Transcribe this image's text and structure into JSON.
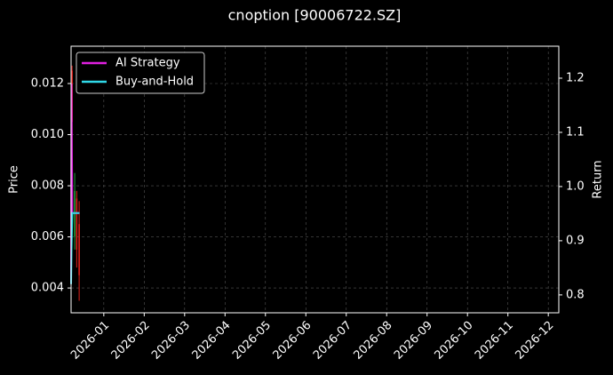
{
  "chart_data": {
    "type": "candlestick",
    "title": "cnoption [90006722.SZ]",
    "y_label": "Price",
    "y2_label": "Return",
    "xlim": [
      0.19,
      12.26
    ],
    "xticks": [
      {
        "value": 1,
        "label": "2026-01"
      },
      {
        "value": 2,
        "label": "2026-02"
      },
      {
        "value": 3,
        "label": "2026-03"
      },
      {
        "value": 4,
        "label": "2026-04"
      },
      {
        "value": 5,
        "label": "2026-05"
      },
      {
        "value": 6,
        "label": "2026-06"
      },
      {
        "value": 7,
        "label": "2026-07"
      },
      {
        "value": 8,
        "label": "2026-08"
      },
      {
        "value": 9,
        "label": "2026-09"
      },
      {
        "value": 10,
        "label": "2026-10"
      },
      {
        "value": 11,
        "label": "2026-11"
      },
      {
        "value": 12,
        "label": "2026-12"
      }
    ],
    "ylim": [
      0.00303,
      0.01346
    ],
    "yticks": [
      0.004,
      0.006,
      0.008,
      0.01,
      0.012
    ],
    "y2lim": [
      0.767,
      1.259
    ],
    "y2ticks": [
      0.8,
      0.9,
      1.0,
      1.1,
      1.2
    ],
    "y2tick_labels": [
      "0.8",
      "0.9",
      "1.0",
      "1.1",
      "1.2"
    ],
    "yticks_labels": [
      "0.004",
      "0.006",
      "0.008",
      "0.010",
      "0.012"
    ],
    "grid": true,
    "legend": "upper left",
    "candles": {
      "x": [
        0.215,
        0.28,
        0.33,
        0.39
      ],
      "open": [
        0.0125,
        0.006,
        0.0075,
        0.0065
      ],
      "high": [
        0.0127,
        0.0085,
        0.0078,
        0.0074
      ],
      "low": [
        0.0094,
        0.0055,
        0.0048,
        0.0035
      ],
      "close": [
        0.0105,
        0.0078,
        0.0055,
        0.0045
      ],
      "up_color": "#1f9d3a",
      "down_color": "#e0201b"
    },
    "x": [
      0.19,
      0.2,
      0.22,
      0.28,
      0.34,
      0.4
    ],
    "series": [
      {
        "name": "AI Strategy",
        "color": "#e020e0",
        "axis": "y2",
        "values": [
          0.82,
          1.19,
          0.951,
          0.951,
          0.951,
          0.951
        ]
      },
      {
        "name": "Buy-and-Hold",
        "color": "#30d8e8",
        "axis": "y2",
        "values": [
          0.82,
          0.88,
          0.951,
          0.951,
          0.951,
          0.951
        ]
      }
    ]
  }
}
